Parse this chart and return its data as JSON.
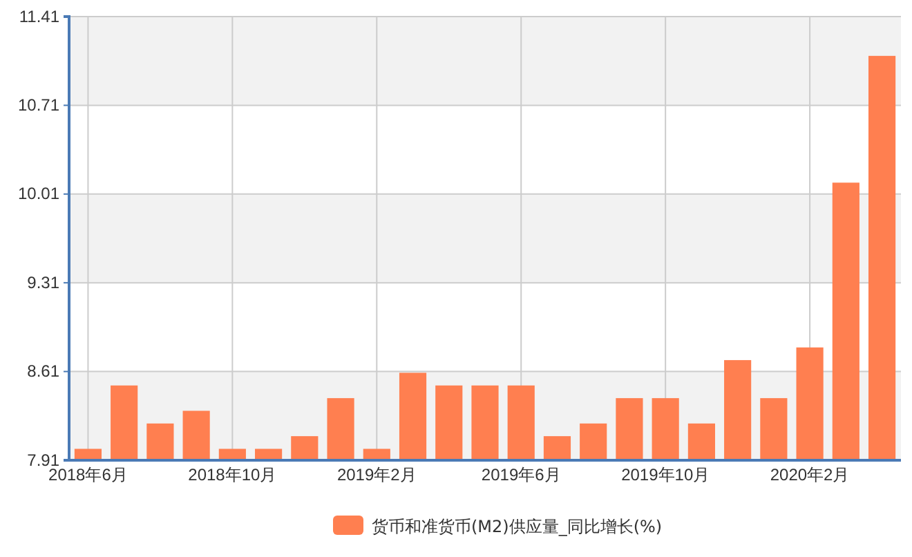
{
  "chart_data": {
    "type": "bar",
    "categories": [
      "2018年6月",
      null,
      null,
      null,
      "2018年10月",
      null,
      null,
      null,
      "2019年2月",
      null,
      null,
      null,
      "2019年6月",
      null,
      null,
      null,
      "2019年10月",
      null,
      null,
      null,
      "2020年2月",
      null,
      null
    ],
    "series": [
      {
        "name": "货币和准货币(M2)供应量_同比增长(%)",
        "color": "#ff7f50",
        "values": [
          8.0,
          8.5,
          8.2,
          8.3,
          8.0,
          8.0,
          8.1,
          8.4,
          8.0,
          8.6,
          8.5,
          8.5,
          8.5,
          8.1,
          8.2,
          8.4,
          8.4,
          8.2,
          8.7,
          8.4,
          8.8,
          10.1,
          11.1
        ]
      }
    ],
    "ylim": [
      7.91,
      11.41
    ],
    "yticks": [
      7.91,
      8.61,
      9.31,
      10.01,
      10.71,
      11.41
    ],
    "grid": true,
    "legend": "bottom"
  }
}
